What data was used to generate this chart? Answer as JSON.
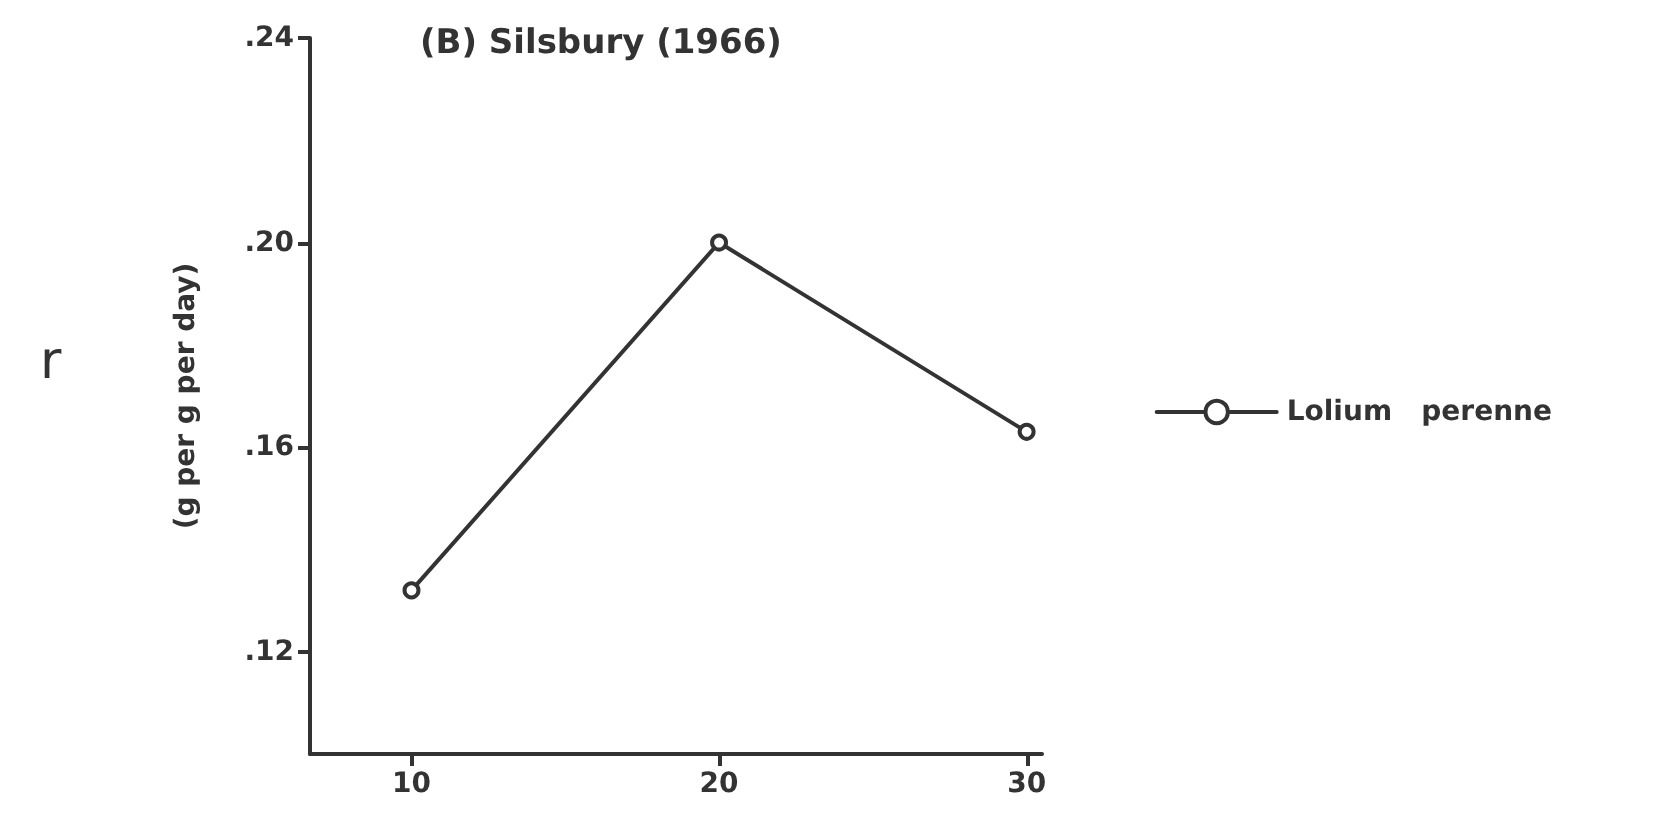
{
  "chart_data": {
    "type": "line",
    "title": "(B) Silsbury (1966)",
    "ylabel": "(g per g per day)",
    "annotations": [
      "r"
    ],
    "x": [
      10,
      20,
      30
    ],
    "series": [
      {
        "name": "Lolium   perenne",
        "color": "#333333",
        "values": [
          0.132,
          0.2,
          0.163
        ]
      }
    ],
    "xlim": [
      6.7,
      30.5
    ],
    "xticks": [
      10,
      20,
      30
    ],
    "ylim": [
      0.1,
      0.24
    ],
    "yticks": [
      {
        "value": 0.12,
        "label": ".12"
      },
      {
        "value": 0.16,
        "label": ".16"
      },
      {
        "value": 0.2,
        "label": ".20"
      },
      {
        "value": 0.24,
        "label": ".24"
      }
    ],
    "grid": false,
    "legend": "right",
    "marker": "circle",
    "line_style": "solid"
  }
}
